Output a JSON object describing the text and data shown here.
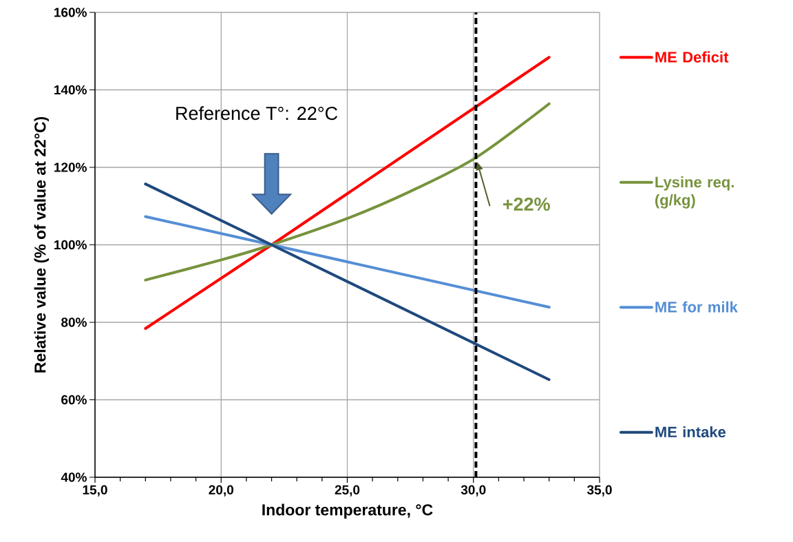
{
  "chart_data": {
    "type": "line",
    "xlabel": "Indoor temperature, °C",
    "ylabel": "Relative  value (% of value at 22°C)",
    "x": [
      17,
      22,
      33
    ],
    "series": [
      {
        "name": "ME Deficit",
        "color": "#ff0000",
        "values": [
          78.4,
          100,
          148.4
        ]
      },
      {
        "name": "Lysine req. (g/kg)",
        "color": "#77933c",
        "x": [
          17,
          20,
          22,
          25,
          27.5,
          30.1,
          33
        ],
        "values": [
          90.9,
          96.1,
          100,
          106.8,
          113.8,
          122.5,
          136.4
        ]
      },
      {
        "name": "ME for milk",
        "color": "#558ed5",
        "values": [
          107.3,
          100,
          83.9
        ]
      },
      {
        "name": "ME intake",
        "color": "#1f497d",
        "values": [
          115.7,
          100,
          65.2
        ]
      }
    ],
    "xlim": [
      15,
      35
    ],
    "xticks": [
      {
        "value": 15,
        "label": "15,0"
      },
      {
        "value": 20,
        "label": "20,0"
      },
      {
        "value": 25,
        "label": "25,0"
      },
      {
        "value": 30,
        "label": "30,0"
      },
      {
        "value": 35,
        "label": "35,0"
      }
    ],
    "ylim": [
      40,
      160
    ],
    "yticks": [
      {
        "value": 40,
        "label": "40%"
      },
      {
        "value": 60,
        "label": "60%"
      },
      {
        "value": 80,
        "label": "80%"
      },
      {
        "value": 100,
        "label": "100%"
      },
      {
        "value": 120,
        "label": "120%"
      },
      {
        "value": 140,
        "label": "140%"
      },
      {
        "value": 160,
        "label": "160%"
      }
    ],
    "ref_lines": [
      {
        "axis": "x",
        "value": 30.1,
        "color": "#000000",
        "line_style": "dashed"
      }
    ],
    "annotations": [
      "Reference T°: 22°C",
      {
        "text": "+22%",
        "x": 30.1,
        "y": 122
      }
    ],
    "grid": true,
    "legend": "right",
    "line_style": "solid"
  }
}
